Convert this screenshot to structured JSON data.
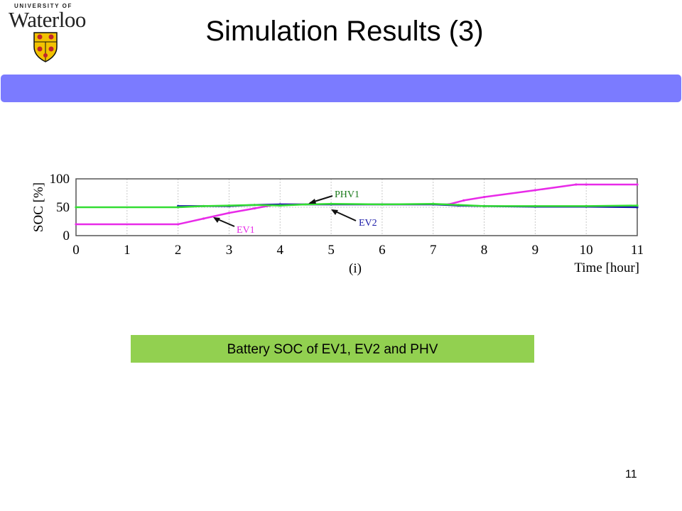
{
  "logo": {
    "top_text": "UNIVERSITY OF",
    "name": "Waterloo"
  },
  "slide": {
    "title": "Simulation Results (3)",
    "page_number": "11"
  },
  "caption": "Battery SOC of EV1, EV2 and PHV",
  "colors": {
    "title_bar": "#7b7bff",
    "caption_bg": "#92d050",
    "ev1": "#e82ae8",
    "ev2": "#1a1aa8",
    "phv1": "#33dd33"
  },
  "chart_data": {
    "type": "line",
    "xlabel": "Time [hour]",
    "ylabel": "SOC [%]",
    "sub_label": "(i)",
    "xlim": [
      0,
      11
    ],
    "ylim": [
      0,
      100
    ],
    "xticks": [
      0,
      1,
      2,
      3,
      4,
      5,
      6,
      7,
      8,
      9,
      10,
      11
    ],
    "yticks": [
      0,
      50,
      100
    ],
    "grid": true,
    "series": [
      {
        "name": "EV1",
        "color": "#e82ae8",
        "x": [
          0,
          2,
          2.5,
          3,
          3.5,
          3.8,
          4,
          7.3,
          7.6,
          8,
          9,
          9.8,
          10,
          11
        ],
        "y": [
          20,
          20,
          30,
          40,
          48,
          53,
          55,
          55,
          62,
          68,
          80,
          90,
          90,
          90
        ]
      },
      {
        "name": "EV2",
        "color": "#1a1aa8",
        "x": [
          2,
          3,
          3.5,
          4,
          5,
          6,
          7,
          7.5,
          8,
          9,
          10,
          11
        ],
        "y": [
          52,
          52,
          54,
          55,
          55,
          55,
          55,
          53,
          52,
          51,
          51,
          50
        ]
      },
      {
        "name": "PHV1",
        "color": "#33dd33",
        "x": [
          0,
          2,
          2.5,
          3,
          3.5,
          4,
          4.5,
          5,
          6,
          7,
          7.5,
          8,
          9,
          10,
          11
        ],
        "y": [
          50,
          50,
          52,
          53,
          54,
          53,
          55,
          56,
          55,
          56,
          54,
          52,
          52,
          52,
          53
        ]
      }
    ],
    "annotations": [
      {
        "text": "PHV1",
        "color": "#1a7a1a"
      },
      {
        "text": "EV2",
        "color": "#1a1aa8"
      },
      {
        "text": "EV1",
        "color": "#e82ae8"
      }
    ]
  }
}
